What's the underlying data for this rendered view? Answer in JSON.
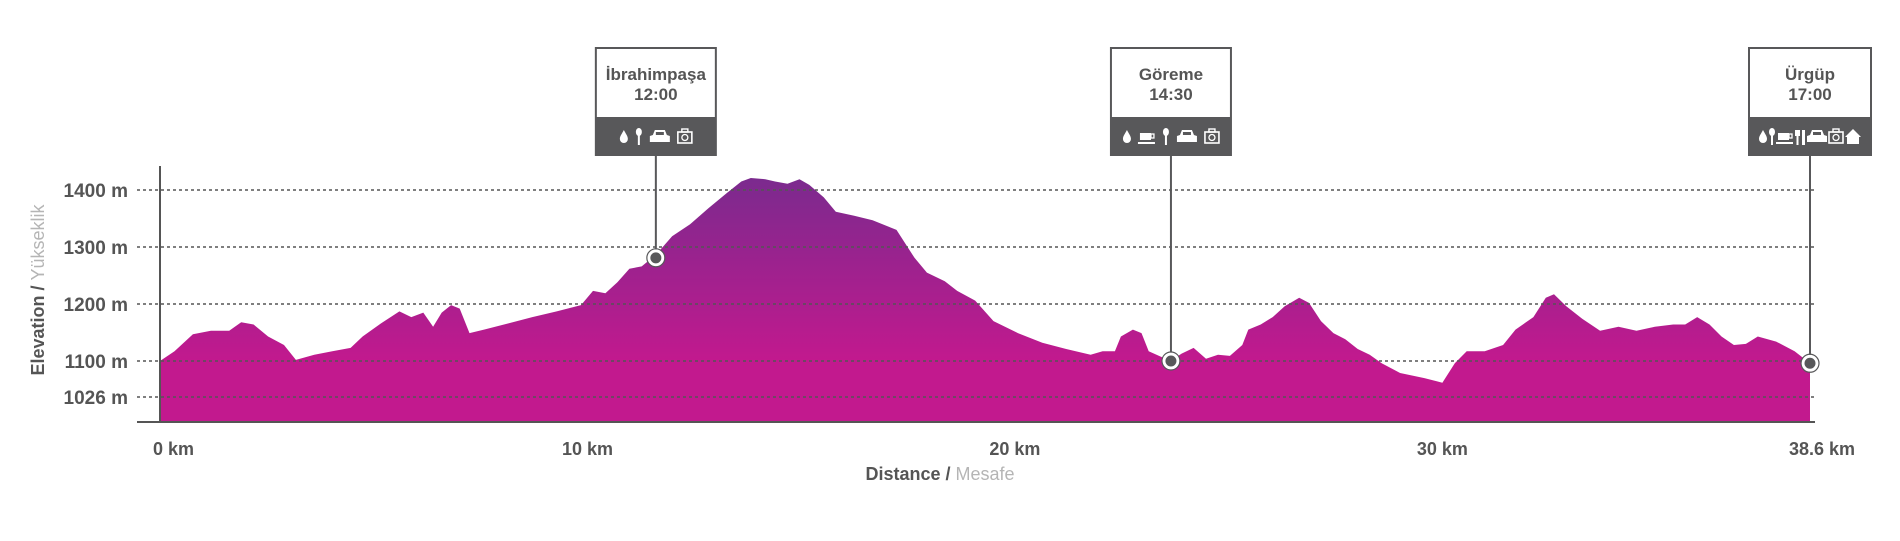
{
  "chart_data": {
    "type": "area",
    "title": "",
    "xlabel": {
      "primary": "Distance",
      "separator": " / ",
      "secondary": "Mesafe"
    },
    "ylabel": {
      "primary": "Elevation",
      "separator": " / ",
      "secondary": "Yükseklik"
    },
    "xlim": [
      0,
      38.6
    ],
    "ylim": [
      990,
      1440
    ],
    "x_ticks": [
      {
        "value": 0,
        "label": "0 km"
      },
      {
        "value": 10,
        "label": "10 km"
      },
      {
        "value": 20,
        "label": "20 km"
      },
      {
        "value": 30,
        "label": "30 km"
      },
      {
        "value": 38.6,
        "label": "38.6 km"
      }
    ],
    "y_ticks": [
      {
        "value": 1400,
        "label": "1400 m"
      },
      {
        "value": 1300,
        "label": "1300 m"
      },
      {
        "value": 1200,
        "label": "1200 m"
      },
      {
        "value": 1100,
        "label": "1100 m"
      },
      {
        "value": 1026,
        "label": "1026 m"
      }
    ],
    "grid": "horizontal-dotted",
    "colors": {
      "fill_top": "#7b2a8e",
      "fill_bottom": "#c2198e",
      "text": "#555555",
      "text_secondary": "#b5b5b5",
      "marker_dark": "#58585a"
    },
    "series": [
      {
        "name": "Elevation",
        "km": [
          0,
          0.34,
          0.77,
          1.19,
          1.62,
          1.9,
          2.19,
          2.53,
          2.9,
          3.18,
          3.61,
          4.03,
          4.46,
          4.74,
          5.17,
          5.6,
          5.88,
          6.16,
          6.39,
          6.59,
          6.81,
          7.01,
          7.24,
          7.58,
          8.15,
          8.71,
          9.28,
          9.85,
          10.13,
          10.42,
          10.7,
          10.98,
          11.27,
          11.61,
          11.98,
          12.4,
          12.83,
          13.25,
          13.6,
          13.82,
          14.16,
          14.39,
          14.68,
          14.96,
          15.19,
          15.53,
          15.81,
          16.24,
          16.67,
          17.23,
          17.65,
          17.94,
          18.36,
          18.65,
          19.07,
          19.5,
          20.07,
          20.64,
          21.2,
          21.77,
          22.05,
          22.34,
          22.48,
          22.76,
          22.96,
          23.13,
          23.64,
          23.9,
          24.18,
          24.47,
          24.75,
          25.03,
          25.32,
          25.46,
          25.75,
          26.03,
          26.31,
          26.65,
          26.88,
          27.16,
          27.45,
          27.73,
          28.02,
          28.3,
          28.58,
          29.01,
          29.58,
          30.0,
          30.29,
          30.57,
          30.99,
          31.42,
          31.71,
          32.13,
          32.42,
          32.61,
          32.9,
          33.27,
          33.69,
          34.12,
          34.54,
          34.97,
          35.4,
          35.68,
          35.96,
          36.25,
          36.53,
          36.82,
          37.1,
          37.38,
          37.81,
          38.24,
          38.6
        ],
        "elev": [
          1100,
          1117,
          1147,
          1153,
          1153,
          1168,
          1164,
          1143,
          1128,
          1102,
          1111,
          1117,
          1123,
          1143,
          1166,
          1187,
          1177,
          1185,
          1160,
          1185,
          1198,
          1192,
          1149,
          1155,
          1166,
          1177,
          1187,
          1198,
          1223,
          1219,
          1238,
          1262,
          1266,
          1287,
          1319,
          1340,
          1368,
          1394,
          1415,
          1421,
          1419,
          1415,
          1411,
          1419,
          1409,
          1387,
          1362,
          1355,
          1347,
          1330,
          1281,
          1255,
          1240,
          1223,
          1206,
          1170,
          1149,
          1132,
          1121,
          1111,
          1117,
          1117,
          1143,
          1155,
          1149,
          1117,
          1100,
          1113,
          1123,
          1104,
          1111,
          1109,
          1128,
          1155,
          1164,
          1177,
          1196,
          1211,
          1202,
          1170,
          1149,
          1138,
          1121,
          1111,
          1096,
          1079,
          1070,
          1062,
          1096,
          1117,
          1117,
          1128,
          1155,
          1177,
          1211,
          1217,
          1196,
          1174,
          1153,
          1160,
          1153,
          1160,
          1164,
          1164,
          1177,
          1164,
          1143,
          1128,
          1130,
          1143,
          1134,
          1117,
          1096
        ]
      }
    ],
    "waypoints": [
      {
        "name": "İbrahimpaşa",
        "time": "12:00",
        "km": 11.6,
        "elev": 1281,
        "icons": [
          "water-drop",
          "spoon",
          "car",
          "first-aid-kit"
        ]
      },
      {
        "name": "Göreme",
        "time": "14:30",
        "km": 23.65,
        "elev": 1100,
        "icons": [
          "water-drop",
          "coffee-cup",
          "spoon",
          "car",
          "first-aid-kit"
        ]
      },
      {
        "name": "Ürgüp",
        "time": "17:00",
        "km": 38.6,
        "elev": 1096,
        "icons": [
          "water-drop",
          "spoon",
          "coffee-cup",
          "fork-knife",
          "car",
          "first-aid-kit",
          "house"
        ]
      }
    ]
  }
}
